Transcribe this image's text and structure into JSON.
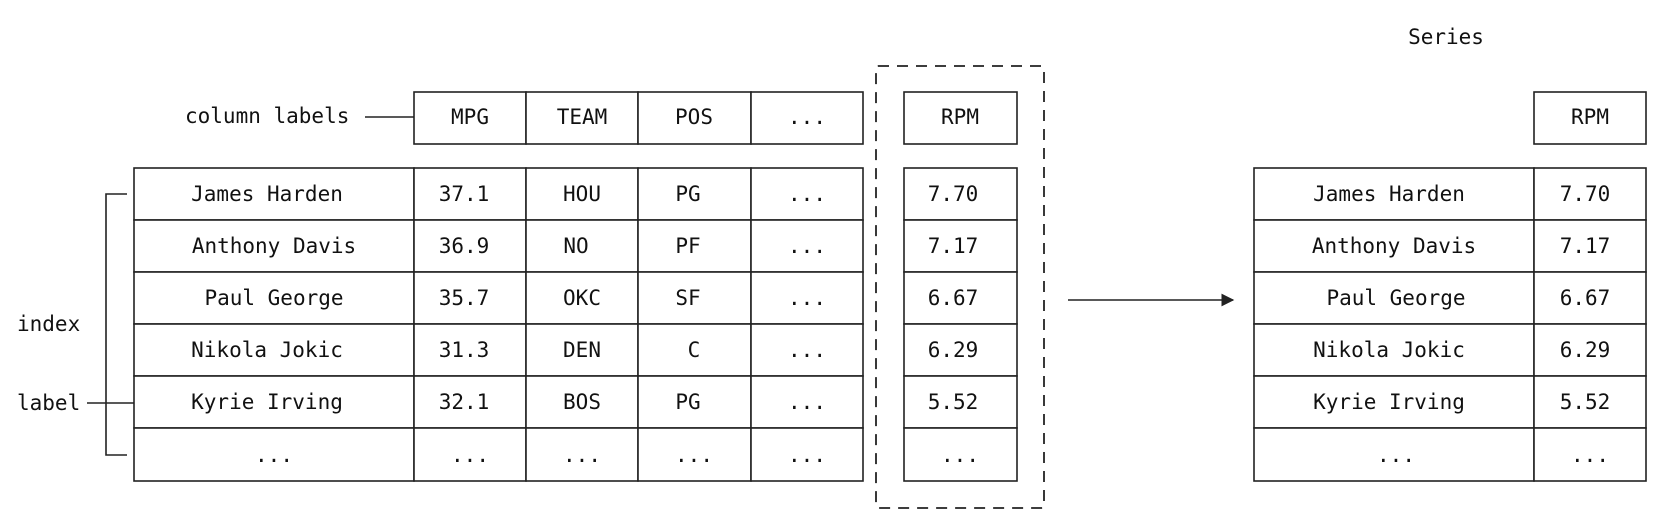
{
  "series_title": "Series",
  "column_labels_annotation": "column labels",
  "index_annotation": "index",
  "label_annotation": "label",
  "columns": [
    "MPG",
    "TEAM",
    "POS",
    "..."
  ],
  "selected_column": "RPM",
  "rows": [
    {
      "name": "James Harden",
      "mpg": "37.1",
      "team": "HOU",
      "pos": "PG",
      "more": "...",
      "rpm": "7.70"
    },
    {
      "name": "Anthony Davis",
      "mpg": "36.9",
      "team": "NO",
      "pos": "PF",
      "more": "...",
      "rpm": "7.17"
    },
    {
      "name": "Paul George",
      "mpg": "35.7",
      "team": "OKC",
      "pos": "SF",
      "more": "...",
      "rpm": "6.67"
    },
    {
      "name": "Nikola Jokic",
      "mpg": "31.3",
      "team": "DEN",
      "pos": "C",
      "more": "...",
      "rpm": "6.29"
    },
    {
      "name": "Kyrie Irving",
      "mpg": "32.1",
      "team": "BOS",
      "pos": "PG",
      "more": "...",
      "rpm": "5.52"
    },
    {
      "name": "...",
      "mpg": "...",
      "team": "...",
      "pos": "...",
      "more": "...",
      "rpm": "..."
    }
  ]
}
